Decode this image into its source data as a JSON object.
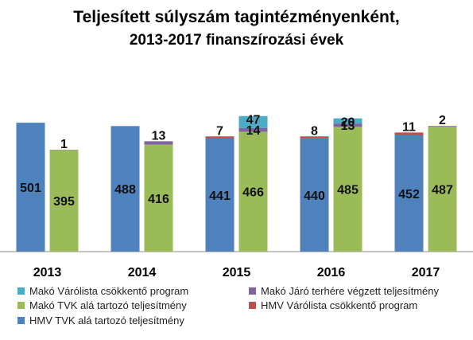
{
  "chart_data": {
    "type": "bar",
    "stacked": true,
    "title": "Teljesített súlyszám tagintézményenként,",
    "subtitle": "2013-2017 finanszírozási évek",
    "categories": [
      "2013",
      "2014",
      "2015",
      "2016",
      "2017"
    ],
    "groups": [
      {
        "name": "HMV",
        "series": [
          {
            "name": "HMV TVK alá tartozó teljesítmény",
            "color": "#4f81bd",
            "values": [
              501,
              488,
              441,
              440,
              452
            ]
          },
          {
            "name": "HMV Várólista csökkentő program",
            "color": "#c0504d",
            "values": [
              0,
              0,
              7,
              8,
              11
            ]
          }
        ]
      },
      {
        "name": "Makó",
        "series": [
          {
            "name": "Makó TVK alá tartozó teljesítmény",
            "color": "#9bbb59",
            "values": [
              395,
              416,
              466,
              485,
              487
            ]
          },
          {
            "name": "Makó Járó terhére végzett teljesítmény",
            "color": "#8064a2",
            "values": [
              1,
              13,
              14,
              13,
              2
            ]
          },
          {
            "name": "Makó Várólista csökkentő program",
            "color": "#4bacc6",
            "values": [
              0,
              0,
              47,
              20,
              0
            ]
          }
        ]
      }
    ],
    "labels": {
      "HMV TVK alá tartozó teljesítmény": [
        "501",
        "488",
        "441",
        "440",
        "452"
      ],
      "HMV Várólista csökkentő program": [
        "",
        "",
        "7",
        "8",
        "11"
      ],
      "Makó TVK alá tartozó teljesítmény": [
        "395",
        "416",
        "466",
        "485",
        "487"
      ],
      "Makó Járó terhére végzett teljesítmény": [
        "1",
        "13",
        "14",
        "13",
        "2"
      ],
      "Makó Várólista csökkentő program": [
        "",
        "",
        "47",
        "20",
        ""
      ]
    },
    "legend": [
      {
        "label": "Makó Várólista csökkentő program",
        "color": "#4bacc6"
      },
      {
        "label": "Makó Járó terhére végzett teljesítmény",
        "color": "#8064a2"
      },
      {
        "label": "Makó TVK alá tartozó teljesítmény",
        "color": "#9bbb59"
      },
      {
        "label": "HMV Várólista csökkentő program",
        "color": "#c0504d"
      },
      {
        "label": "HMV TVK alá tartozó teljesítmény",
        "color": "#4f81bd"
      }
    ],
    "legend_position": "bottom",
    "ylim": [
      0,
      520
    ],
    "grid": false
  }
}
